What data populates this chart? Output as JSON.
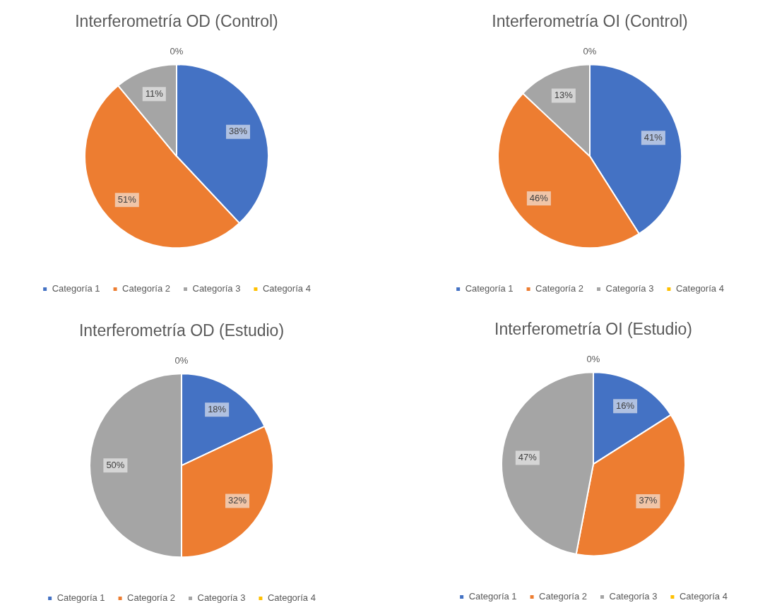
{
  "chart_data": [
    {
      "type": "pie",
      "title": "Interferometría OD (Control)",
      "categories": [
        "Categoría 1",
        "Categoría 2",
        "Categoría 3",
        "Categoría 4"
      ],
      "values": [
        38,
        51,
        11,
        0
      ],
      "colors": [
        "#4472c4",
        "#ed7d31",
        "#a5a5a5",
        "#ffc000"
      ],
      "value_labels": [
        "38%",
        "51%",
        "11%",
        "0%"
      ],
      "legend": "bottom"
    },
    {
      "type": "pie",
      "title": "Interferometría OI (Control)",
      "categories": [
        "Categoría 1",
        "Categoría 2",
        "Categoría 3",
        "Categoría 4"
      ],
      "values": [
        41,
        46,
        13,
        0
      ],
      "colors": [
        "#4472c4",
        "#ed7d31",
        "#a5a5a5",
        "#ffc000"
      ],
      "value_labels": [
        "41%",
        "46%",
        "13%",
        "0%"
      ],
      "legend": "bottom"
    },
    {
      "type": "pie",
      "title": "Interferometría OD (Estudio)",
      "categories": [
        "Categoría 1",
        "Categoría 2",
        "Categoría 3",
        "Categoría 4"
      ],
      "values": [
        18,
        32,
        50,
        0
      ],
      "colors": [
        "#4472c4",
        "#ed7d31",
        "#a5a5a5",
        "#ffc000"
      ],
      "value_labels": [
        "18%",
        "32%",
        "50%",
        "0%"
      ],
      "legend": "bottom"
    },
    {
      "type": "pie",
      "title": "Interferometría OI (Estudio)",
      "categories": [
        "Categoría 1",
        "Categoría 2",
        "Categoría 3",
        "Categoría 4"
      ],
      "values": [
        16,
        37,
        47,
        0
      ],
      "colors": [
        "#4472c4",
        "#ed7d31",
        "#a5a5a5",
        "#ffc000"
      ],
      "value_labels": [
        "16%",
        "37%",
        "47%",
        "0%"
      ],
      "legend": "bottom"
    }
  ]
}
